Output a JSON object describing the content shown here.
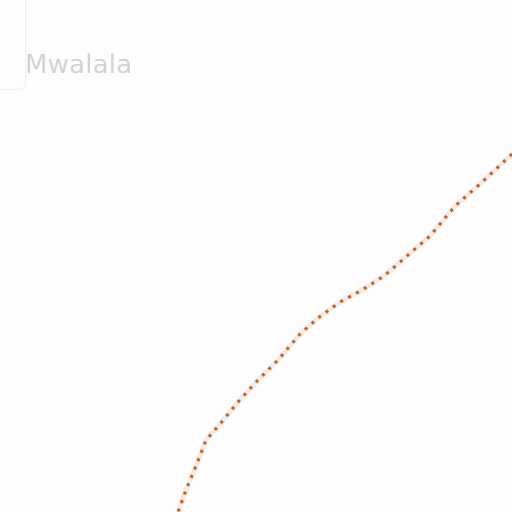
{
  "map": {
    "place_label": "Mwalala",
    "road_color": "#e05a00",
    "road_dash_color": "#c00000",
    "road_casing_color": "#ececec",
    "background_color": "#fdfdfd"
  },
  "icons": {
    "corner_box": "label-box-icon"
  }
}
